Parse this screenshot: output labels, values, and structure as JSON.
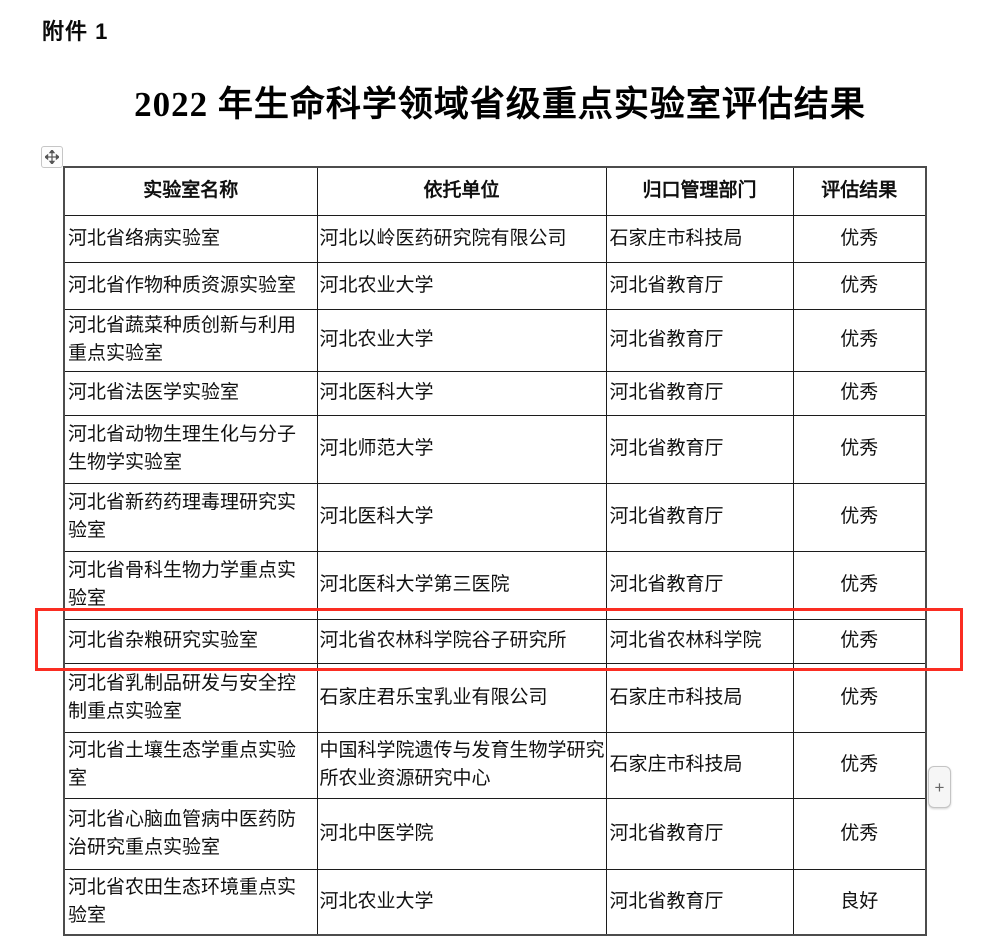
{
  "page": {
    "attachment_label": "附件 1",
    "title": "2022 年生命科学领域省级重点实验室评估结果"
  },
  "table": {
    "headers": [
      "实验室名称",
      "依托单位",
      "归口管理部门",
      "评估结果"
    ],
    "rows": [
      {
        "name": "河北省络病实验室",
        "org": "河北以岭医药研究院有限公司",
        "dept": "石家庄市科技局",
        "result": "优秀",
        "highlighted": false
      },
      {
        "name": "河北省作物种质资源实验室",
        "org": "河北农业大学",
        "dept": "河北省教育厅",
        "result": "优秀",
        "highlighted": false
      },
      {
        "name": "河北省蔬菜种质创新与利用重点实验室",
        "org": "河北农业大学",
        "dept": "河北省教育厅",
        "result": "优秀",
        "highlighted": false
      },
      {
        "name": "河北省法医学实验室",
        "org": "河北医科大学",
        "dept": "河北省教育厅",
        "result": "优秀",
        "highlighted": false
      },
      {
        "name": "河北省动物生理生化与分子生物学实验室",
        "org": "河北师范大学",
        "dept": "河北省教育厅",
        "result": "优秀",
        "highlighted": false
      },
      {
        "name": "河北省新药药理毒理研究实验室",
        "org": "河北医科大学",
        "dept": "河北省教育厅",
        "result": "优秀",
        "highlighted": false
      },
      {
        "name": "河北省骨科生物力学重点实验室",
        "org": "河北医科大学第三医院",
        "dept": "河北省教育厅",
        "result": "优秀",
        "highlighted": false
      },
      {
        "name": "河北省杂粮研究实验室",
        "org": "河北省农林科学院谷子研究所",
        "dept": "河北省农林科学院",
        "result": "优秀",
        "highlighted": true
      },
      {
        "name": "河北省乳制品研发与安全控制重点实验室",
        "org": "石家庄君乐宝乳业有限公司",
        "dept": "石家庄市科技局",
        "result": "优秀",
        "highlighted": false
      },
      {
        "name": "河北省土壤生态学重点实验室",
        "org": "中国科学院遗传与发育生物学研究所农业资源研究中心",
        "dept": "石家庄市科技局",
        "result": "优秀",
        "highlighted": false
      },
      {
        "name": "河北省心脑血管病中医药防治研究重点实验室",
        "org": "河北中医学院",
        "dept": "河北省教育厅",
        "result": "优秀",
        "highlighted": false
      },
      {
        "name": "河北省农田生态环境重点实验室",
        "org": "河北农业大学",
        "dept": "河北省教育厅",
        "result": "良好",
        "highlighted": false
      }
    ]
  },
  "controls": {
    "insert_button_label": "+"
  },
  "colors": {
    "highlight_border": "#fa2d22"
  }
}
